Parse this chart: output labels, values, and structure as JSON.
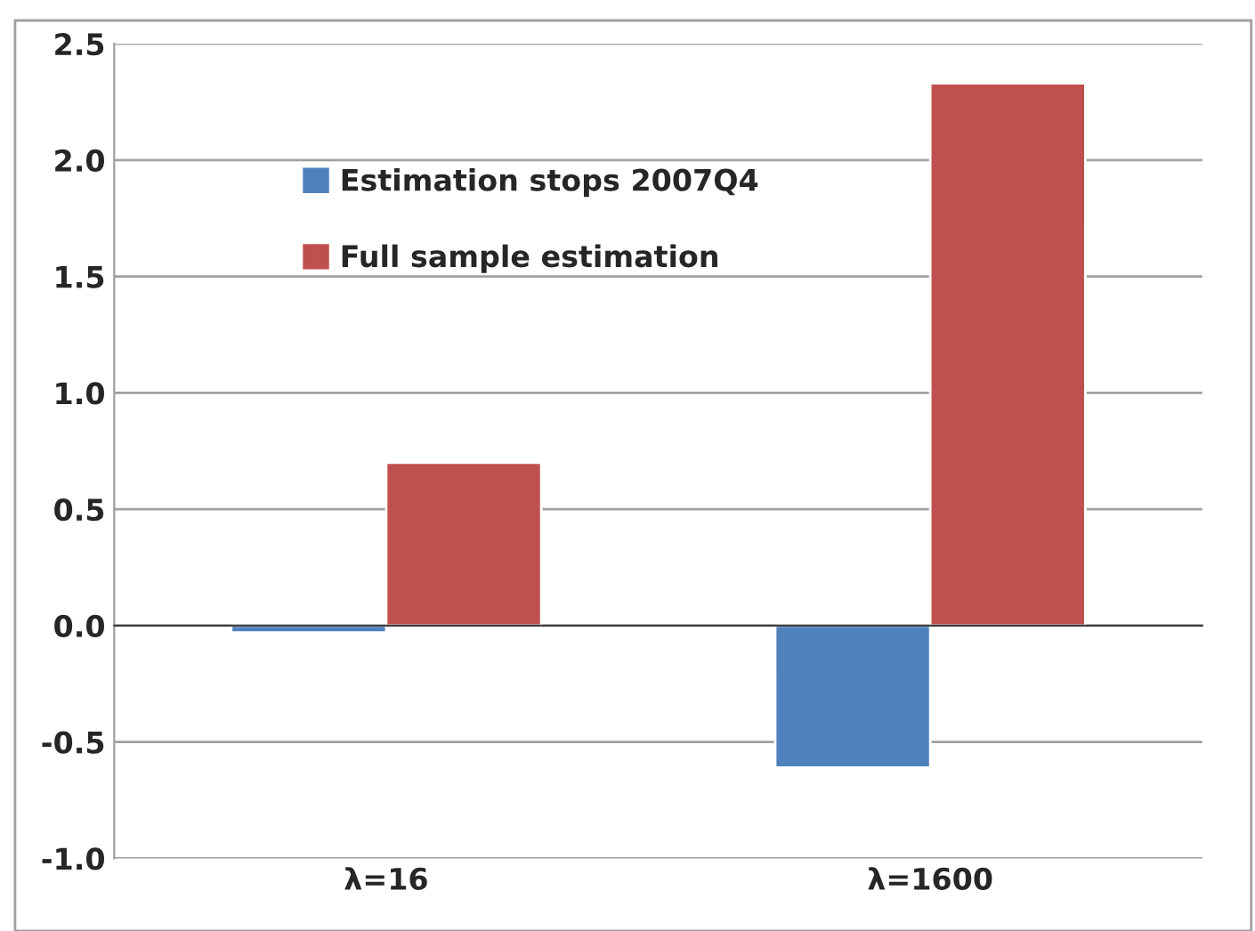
{
  "chart_data": {
    "type": "bar",
    "categories": [
      "λ=16",
      "λ=1600"
    ],
    "series": [
      {
        "name": "Estimation stops 2007Q4",
        "color": "#4f81bd",
        "values": [
          -0.03,
          -0.61
        ]
      },
      {
        "name": "Full sample estimation",
        "color": "#c0504d",
        "values": [
          0.7,
          2.33
        ]
      }
    ],
    "ylim": [
      -1.0,
      2.5
    ],
    "yticks": [
      {
        "value": -1.0,
        "label": "-1.0"
      },
      {
        "value": -0.5,
        "label": "-0.5"
      },
      {
        "value": 0.0,
        "label": "0.0"
      },
      {
        "value": 0.5,
        "label": "0.5"
      },
      {
        "value": 1.0,
        "label": "1.0"
      },
      {
        "value": 1.5,
        "label": "1.5"
      },
      {
        "value": 2.0,
        "label": "2.0"
      },
      {
        "value": 2.5,
        "label": "2.5"
      }
    ],
    "grid": "y",
    "legend": "top left"
  }
}
